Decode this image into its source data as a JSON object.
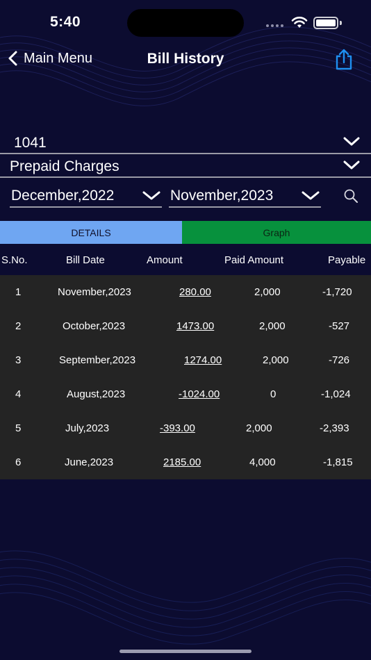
{
  "status_bar": {
    "time": "5:40"
  },
  "nav": {
    "back_label": "Main Menu",
    "title": "Bill History"
  },
  "account": {
    "selected": "1041"
  },
  "category": {
    "selected": "Prepaid Charges"
  },
  "date_range": {
    "from": "December,2022",
    "to": "November,2023"
  },
  "tabs": [
    {
      "label": "DETAILS",
      "color": "#6fa6f2"
    },
    {
      "label": "Graph",
      "color": "#07913d"
    }
  ],
  "table": {
    "headers": [
      "S.No.",
      "Bill Date",
      "Amount",
      "Paid Amount",
      "Payable"
    ],
    "rows": [
      {
        "sno": "1",
        "date": "November,2023",
        "amount": "280.00",
        "paid": "2,000",
        "payable": "-1,720"
      },
      {
        "sno": "2",
        "date": "October,2023",
        "amount": "1473.00",
        "paid": "2,000",
        "payable": "-527"
      },
      {
        "sno": "3",
        "date": "September,2023",
        "amount": "1274.00",
        "paid": "2,000",
        "payable": "-726"
      },
      {
        "sno": "4",
        "date": "August,2023",
        "amount": "-1024.00",
        "paid": "0",
        "payable": "-1,024"
      },
      {
        "sno": "5",
        "date": "July,2023",
        "amount": "-393.00",
        "paid": "2,000",
        "payable": "-2,393"
      },
      {
        "sno": "6",
        "date": "June,2023",
        "amount": "2185.00",
        "paid": "4,000",
        "payable": "-1,815"
      }
    ]
  },
  "icons": {
    "back": "chevron-left-icon",
    "share": "share-icon",
    "dropdown": "chevron-down-icon",
    "search": "search-icon"
  },
  "colors": {
    "background": "#0c0c30",
    "accent": "#1e8ff0",
    "details_tab": "#6fa6f2",
    "graph_tab": "#07913d",
    "table_bg": "#242424"
  }
}
